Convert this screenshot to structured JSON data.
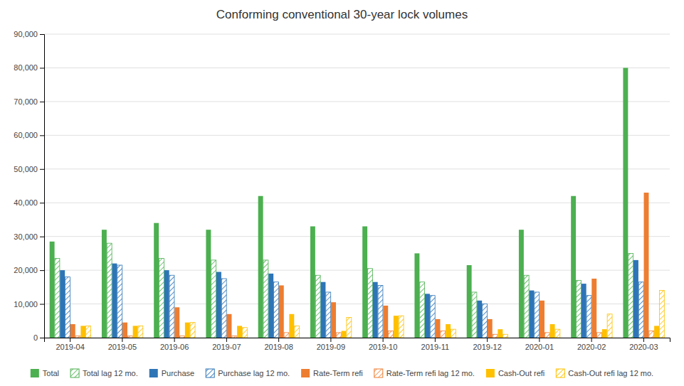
{
  "chart_data": {
    "type": "bar",
    "title": "Conforming conventional 30-year lock volumes",
    "categories": [
      "2019-04",
      "2019-05",
      "2019-06",
      "2019-07",
      "2019-08",
      "2019-09",
      "2019-10",
      "2019-11",
      "2019-12",
      "2020-01",
      "2020-02",
      "2020-03"
    ],
    "series": [
      {
        "name": "Total",
        "color": "#4CAF50",
        "values": [
          28500,
          32000,
          34000,
          32000,
          42000,
          33000,
          33000,
          25000,
          21500,
          32000,
          42000,
          80000
        ]
      },
      {
        "name": "Total lag 12 mo.",
        "color": "#4CAF50",
        "values": [
          23500,
          28000,
          23500,
          23000,
          23000,
          18500,
          20500,
          16500,
          13500,
          18500,
          17000,
          25000
        ]
      },
      {
        "name": "Purchase",
        "color": "#2E75B6",
        "values": [
          20000,
          22000,
          20000,
          19500,
          19000,
          16500,
          16500,
          13000,
          11000,
          14000,
          16000,
          23000
        ]
      },
      {
        "name": "Purchase lag 12 mo.",
        "color": "#2E75B6",
        "values": [
          18000,
          21500,
          18500,
          17500,
          16500,
          13500,
          15500,
          12500,
          10000,
          13500,
          12500,
          16500
        ]
      },
      {
        "name": "Rate-Term refi",
        "color": "#ED7D31",
        "values": [
          4000,
          4500,
          9000,
          7000,
          15500,
          10500,
          9500,
          5500,
          5500,
          11000,
          17500,
          43000
        ]
      },
      {
        "name": "Rate-Term refi lag 12 mo.",
        "color": "#ED7D31",
        "values": [
          500,
          500,
          500,
          500,
          1500,
          1500,
          2000,
          2000,
          1000,
          1500,
          1500,
          2000
        ]
      },
      {
        "name": "Cash-Out refi",
        "color": "#FFC000",
        "values": [
          3500,
          3500,
          4500,
          3500,
          7000,
          2000,
          6500,
          4000,
          2500,
          4000,
          2500,
          3500
        ]
      },
      {
        "name": "Cash-Out refi lag 12 mo.",
        "color": "#FFC000",
        "values": [
          3500,
          3500,
          4500,
          3000,
          3500,
          6000,
          6500,
          2500,
          1000,
          2500,
          7000,
          14000
        ]
      }
    ],
    "ylim": [
      0,
      90000
    ],
    "yticks": [
      0,
      {
        "value": 10000,
        "label": "10,000"
      },
      {
        "value": 20000,
        "label": "20,000"
      },
      {
        "value": 30000,
        "label": "30,000"
      },
      {
        "value": 40000,
        "label": "40,000"
      },
      {
        "value": 50000,
        "label": "50,000"
      },
      {
        "value": 60000,
        "label": "60,000"
      },
      {
        "value": 70000,
        "label": "70,000"
      },
      {
        "value": 80000,
        "label": "80,000"
      },
      {
        "value": 90000,
        "label": "90,000"
      }
    ],
    "grid": true,
    "legend": "bottom"
  }
}
